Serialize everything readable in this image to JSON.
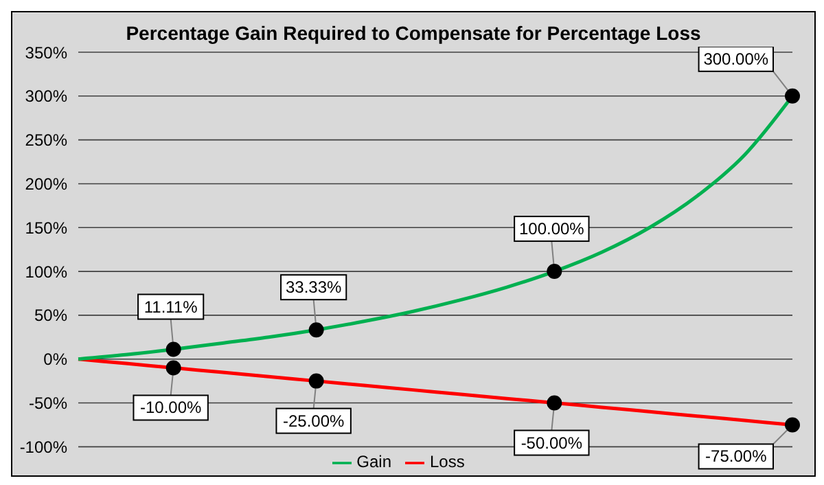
{
  "chart_data": {
    "type": "line",
    "title": "Percentage Gain Required to Compensate for Percentage Loss",
    "categories": [
      null,
      null,
      null,
      null,
      null,
      null,
      null,
      null,
      null,
      null,
      null,
      null,
      null,
      null,
      null,
      null
    ],
    "series": [
      {
        "name": "Loss",
        "color": "#ff0000",
        "values": [
          0,
          -5,
          -10,
          -15,
          -20,
          -25,
          -30,
          -35,
          -40,
          -45,
          -50,
          -55,
          -60,
          -65,
          -70,
          -75
        ],
        "value_labels": [
          null,
          null,
          "-10.00%",
          null,
          null,
          "-25.00%",
          null,
          null,
          null,
          null,
          "-50.00%",
          null,
          null,
          null,
          null,
          "-75.00%"
        ]
      },
      {
        "name": "Gain",
        "color": "#00b050",
        "values": [
          0,
          5,
          11.11,
          18,
          25,
          33.33,
          43,
          54,
          67,
          82,
          100,
          122,
          150,
          186,
          233,
          300
        ],
        "value_labels": [
          null,
          null,
          "11.11%",
          null,
          null,
          "33.33%",
          null,
          null,
          null,
          null,
          "100.00%",
          null,
          null,
          null,
          null,
          "300.00%"
        ]
      }
    ],
    "ylim": [
      -100,
      350
    ],
    "yticks": [
      {
        "value": -100,
        "label": "-100%"
      },
      {
        "value": -50,
        "label": "-50%"
      },
      {
        "value": 0,
        "label": "0%"
      },
      {
        "value": 50,
        "label": "50%"
      },
      {
        "value": 100,
        "label": "100%"
      },
      {
        "value": 150,
        "label": "150%"
      },
      {
        "value": 200,
        "label": "200%"
      },
      {
        "value": 250,
        "label": "250%"
      },
      {
        "value": 300,
        "label": "300%"
      },
      {
        "value": 350,
        "label": "350%"
      }
    ],
    "grid": "y",
    "legend": "bottom",
    "tick_labels": "y",
    "line_style": "solid"
  }
}
